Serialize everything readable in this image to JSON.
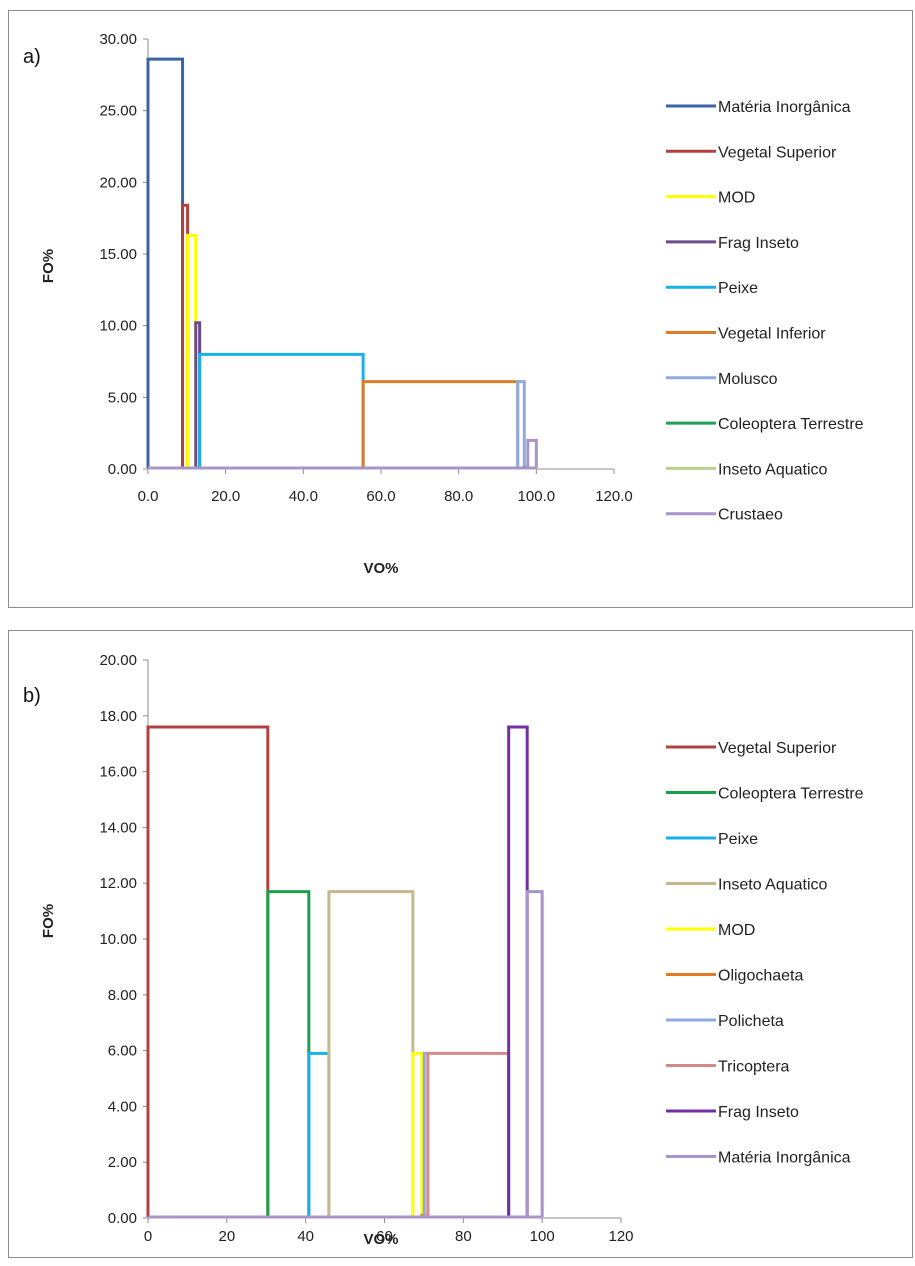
{
  "chart_data": [
    {
      "type": "line",
      "panel_label": "a)",
      "xlabel": "VO%",
      "ylabel": "FO%",
      "xlim": [
        0,
        120
      ],
      "ylim": [
        0,
        30
      ],
      "x_ticks": [
        "0.0",
        "20.0",
        "40.0",
        "60.0",
        "80.0",
        "100.0",
        "120.0"
      ],
      "y_ticks": [
        "0.00",
        "5.00",
        "10.00",
        "15.00",
        "20.00",
        "25.00",
        "30.00"
      ],
      "legend_placement": "right",
      "series": [
        {
          "name": "Matéria Inorgânica",
          "color": "#3a64a4",
          "x_start": 0.0,
          "x_end": 8.9,
          "fo": 28.6
        },
        {
          "name": "Vegetal  Superior",
          "color": "#b0413e",
          "x_start": 8.9,
          "x_end": 10.2,
          "fo": 18.4
        },
        {
          "name": "MOD",
          "color": "#ffff00",
          "x_start": 10.2,
          "x_end": 12.3,
          "fo": 16.3
        },
        {
          "name": "Frag Inseto",
          "color": "#6a4c8c",
          "x_start": 12.3,
          "x_end": 13.3,
          "fo": 10.2
        },
        {
          "name": "Peixe",
          "color": "#1ab0e8",
          "x_start": 13.3,
          "x_end": 55.4,
          "fo": 8.0
        },
        {
          "name": "Vegetal Inferior",
          "color": "#e07b2a",
          "x_start": 55.4,
          "x_end": 95.2,
          "fo": 6.1
        },
        {
          "name": "Molusco",
          "color": "#8faadc",
          "x_start": 95.2,
          "x_end": 96.9,
          "fo": 6.1
        },
        {
          "name": "Coleoptera Terrestre",
          "color": "#22a052",
          "x_start": 96.9,
          "x_end": 97.5,
          "fo": 0.1
        },
        {
          "name": "Inseto Aquatico",
          "color": "#b8d08c",
          "x_start": 97.5,
          "x_end": 97.8,
          "fo": 0.1
        },
        {
          "name": "Crustaeo",
          "color": "#a794c8",
          "x_start": 97.8,
          "x_end": 100.0,
          "fo": 2.0
        }
      ]
    },
    {
      "type": "line",
      "panel_label": "b)",
      "xlabel": "VO%",
      "ylabel": "FO%",
      "xlim": [
        0,
        120
      ],
      "ylim": [
        0,
        20
      ],
      "x_ticks": [
        "0",
        "20",
        "40",
        "60",
        "80",
        "100",
        "120"
      ],
      "y_ticks": [
        "0.00",
        "2.00",
        "4.00",
        "6.00",
        "8.00",
        "10.00",
        "12.00",
        "14.00",
        "16.00",
        "18.00",
        "20.00"
      ],
      "legend_placement": "right",
      "series": [
        {
          "name": "Vegetal  Superior",
          "color": "#b0413e",
          "x_start": 0.0,
          "x_end": 30.4,
          "fo": 17.6
        },
        {
          "name": "Coleoptera Terrestre",
          "color": "#1aa04a",
          "x_start": 30.4,
          "x_end": 40.8,
          "fo": 11.7
        },
        {
          "name": "Peixe",
          "color": "#1ab0e8",
          "x_start": 40.8,
          "x_end": 45.9,
          "fo": 5.9
        },
        {
          "name": "Inseto Aquatico",
          "color": "#c4b88c",
          "x_start": 45.9,
          "x_end": 67.2,
          "fo": 11.7
        },
        {
          "name": "MOD",
          "color": "#ffff00",
          "x_start": 67.2,
          "x_end": 69.5,
          "fo": 5.9
        },
        {
          "name": "Oligochaeta",
          "color": "#e07b2a",
          "x_start": 69.5,
          "x_end": 70.1,
          "fo": 0.1
        },
        {
          "name": "Policheta",
          "color": "#8faadc",
          "x_start": 70.1,
          "x_end": 71.0,
          "fo": 5.9
        },
        {
          "name": "Tricoptera",
          "color": "#d48a8a",
          "x_start": 71.0,
          "x_end": 91.5,
          "fo": 5.9
        },
        {
          "name": "Frag Inseto",
          "color": "#7030a0",
          "x_start": 91.5,
          "x_end": 96.2,
          "fo": 17.6
        },
        {
          "name": "Matéria Inorgânica",
          "color": "#a794c8",
          "x_start": 96.2,
          "x_end": 100.0,
          "fo": 11.7
        }
      ]
    }
  ]
}
